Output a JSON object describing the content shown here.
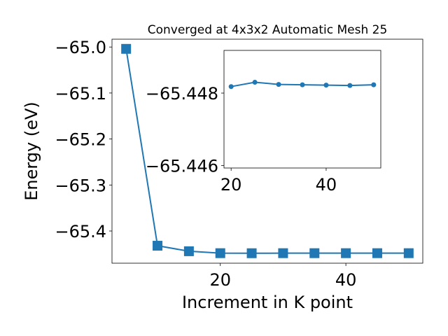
{
  "chart_data": [
    {
      "type": "line",
      "title": "Converged at 4x3x2 Automatic Mesh 25",
      "xlabel": "Increment in K point",
      "ylabel": "Energy (eV)",
      "x": [
        5,
        10,
        15,
        20,
        25,
        30,
        35,
        40,
        45,
        50
      ],
      "series": [
        {
          "values": [
            -65.004,
            -65.432,
            -65.444,
            -65.4482,
            -65.4483,
            -65.4482,
            -65.4482,
            -65.4482,
            -65.4482,
            -65.4482
          ],
          "marker": "square",
          "color": "#1f77b4"
        }
      ],
      "xlim": [
        2.75,
        52.25
      ],
      "ylim": [
        -65.47,
        -64.983
      ],
      "xticks": [
        20,
        40
      ],
      "xtick_labels": [
        "20",
        "40"
      ],
      "yticks": [
        -65.4,
        -65.3,
        -65.2,
        -65.1,
        -65.0
      ],
      "ytick_labels": [
        "−65.4",
        "−65.3",
        "−65.2",
        "−65.1",
        "−65.0"
      ],
      "grid": false
    },
    {
      "type": "line",
      "x": [
        20,
        25,
        30,
        35,
        40,
        45,
        50
      ],
      "series": [
        {
          "values": [
            -65.44818,
            -65.4483,
            -65.44824,
            -65.44823,
            -65.44822,
            -65.44821,
            -65.44823
          ],
          "marker": "circle",
          "color": "#1f77b4"
        }
      ],
      "xlim": [
        18.5,
        51.5
      ],
      "ylim": [
        -65.44593,
        -65.44918
      ],
      "xticks": [
        20,
        40
      ],
      "xtick_labels": [
        "20",
        "40"
      ],
      "yticks": [
        -65.448,
        -65.446
      ],
      "ytick_labels": [
        "−65.448",
        "−65.446"
      ],
      "y_inverted": true,
      "grid": false
    }
  ]
}
